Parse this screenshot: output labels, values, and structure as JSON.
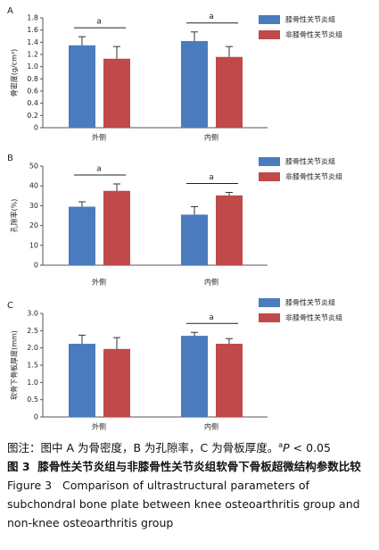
{
  "chart_data": [
    {
      "type": "bar",
      "panel": "A",
      "y_label": "骨密度(g/cm³)",
      "categories": [
        "外侧",
        "内侧"
      ],
      "series": [
        {
          "name": "膝骨性关节炎组",
          "color": "#4a7bbf",
          "values": [
            1.35,
            1.42
          ],
          "errors": [
            0.14,
            0.15
          ]
        },
        {
          "name": "非膝骨性关节炎组",
          "color": "#c0494a",
          "values": [
            1.13,
            1.16
          ],
          "errors": [
            0.2,
            0.17
          ]
        }
      ],
      "significance": [
        "a",
        "a"
      ],
      "ylim": [
        0,
        1.8
      ],
      "yticks": [
        0,
        0.2,
        0.4,
        0.6,
        0.8,
        {
          "value": 1,
          "label": "1.0"
        },
        1.2,
        1.4,
        1.6,
        1.8
      ]
    },
    {
      "type": "bar",
      "panel": "B",
      "y_label": "孔隙率(%)",
      "categories": [
        "外侧",
        "内侧"
      ],
      "series": [
        {
          "name": "膝骨性关节炎组",
          "color": "#4a7bbf",
          "values": [
            29.5,
            25.5
          ],
          "errors": [
            2.5,
            4
          ]
        },
        {
          "name": "非膝骨性关节炎组",
          "color": "#c0494a",
          "values": [
            37.5,
            35.2
          ],
          "errors": [
            3.5,
            1.5
          ]
        }
      ],
      "significance": [
        "a",
        "a"
      ],
      "ylim": [
        0,
        50
      ],
      "yticks": [
        0,
        10,
        20,
        30,
        40,
        50
      ]
    },
    {
      "type": "bar",
      "panel": "C",
      "y_label": "软骨下骨板厚度(mm)",
      "categories": [
        "外侧",
        "内侧"
      ],
      "series": [
        {
          "name": "膝骨性关节炎组",
          "color": "#4a7bbf",
          "values": [
            2.12,
            2.35
          ],
          "errors": [
            0.25,
            0.1
          ]
        },
        {
          "name": "非膝骨性关节炎组",
          "color": "#c0494a",
          "values": [
            1.97,
            2.12
          ],
          "errors": [
            0.33,
            0.15
          ]
        }
      ],
      "significance": [
        null,
        "a"
      ],
      "ylim": [
        0,
        3
      ],
      "yticks": [
        0,
        0.5,
        {
          "value": 1,
          "label": "1.0"
        },
        1.5,
        {
          "value": 2,
          "label": "2.0"
        },
        2.5,
        {
          "value": 3,
          "label": "3.0"
        }
      ]
    }
  ],
  "caption": {
    "note": "图注：图中 A 为骨密度，B 为孔隙率，C 为骨板厚度。",
    "note_sup": "a",
    "note_p": "P",
    "note_rest": " < 0.05",
    "label_cn": "图 3",
    "title_cn": "膝骨性关节炎组与非膝骨性关节炎组软骨下骨板超微结构参数比较",
    "label_en": "Figure 3",
    "title_en": "Comparison of ultrastructural parameters of subchondral bone plate between knee osteoarthritis group and non-knee osteoarthritis group"
  }
}
